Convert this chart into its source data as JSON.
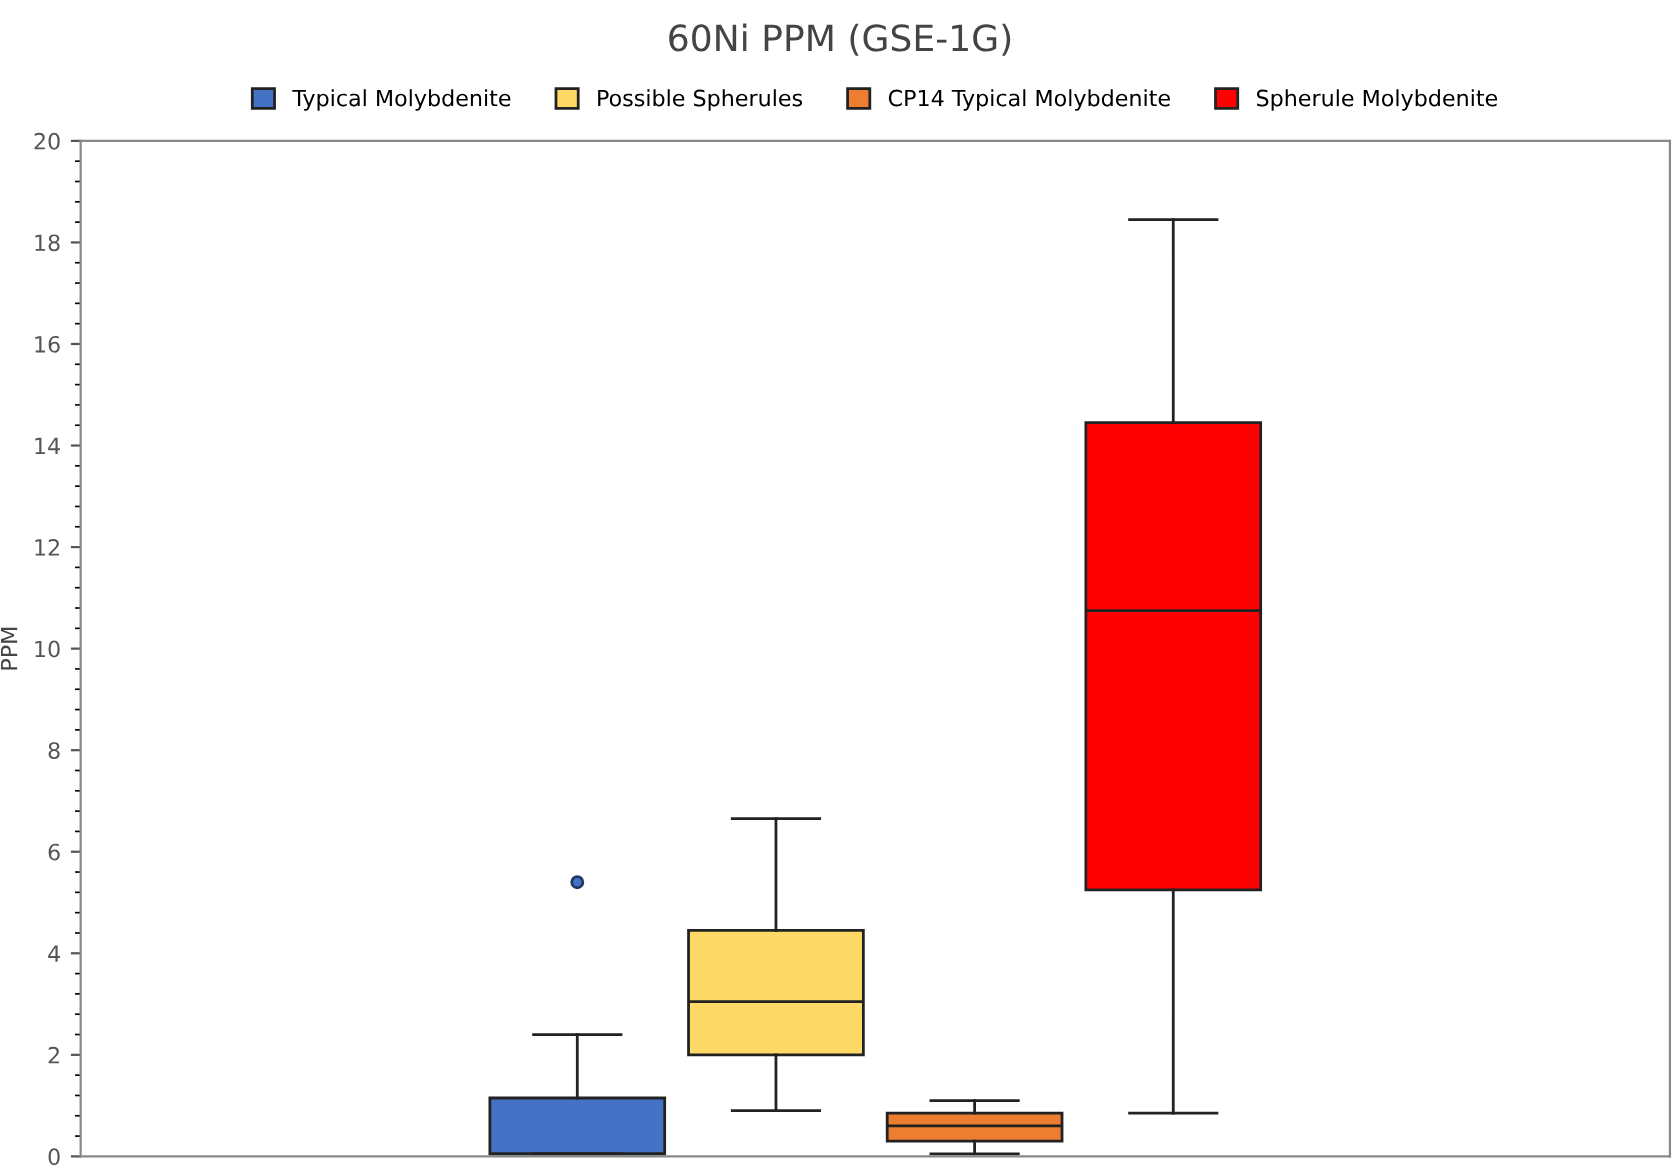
{
  "chart_data": {
    "type": "box",
    "title": "60Ni PPM (GSE-1G)",
    "ylabel": "PPM",
    "categories": [
      null
    ],
    "ylim": [
      0,
      20
    ],
    "yticks": [
      0,
      2,
      4,
      6,
      8,
      10,
      12,
      14,
      16,
      18,
      20
    ],
    "grid": false,
    "legend": "top",
    "series": [
      {
        "name": "Typical Molybdenite",
        "color": "#4472c4",
        "boxes": [
          {
            "low": 0.05,
            "q1": 0.05,
            "median": 0.05,
            "q3": 1.15,
            "high": 2.4,
            "outliers": [
              5.4
            ]
          }
        ]
      },
      {
        "name": "Possible Spherules",
        "color": "#ffd966",
        "boxes": [
          {
            "low": 0.9,
            "q1": 2.0,
            "median": 3.05,
            "q3": 4.45,
            "high": 6.65
          }
        ]
      },
      {
        "name": "CP14 Typical Molybdenite",
        "color": "#ed7d31",
        "boxes": [
          {
            "low": 0.05,
            "q1": 0.3,
            "median": 0.6,
            "q3": 0.85,
            "high": 1.1
          }
        ]
      },
      {
        "name": "Spherule Molybdenite",
        "color": "#ff0000",
        "boxes": [
          {
            "low": 0.85,
            "q1": 5.25,
            "median": 10.75,
            "q3": 14.45,
            "high": 18.45
          }
        ]
      }
    ]
  }
}
